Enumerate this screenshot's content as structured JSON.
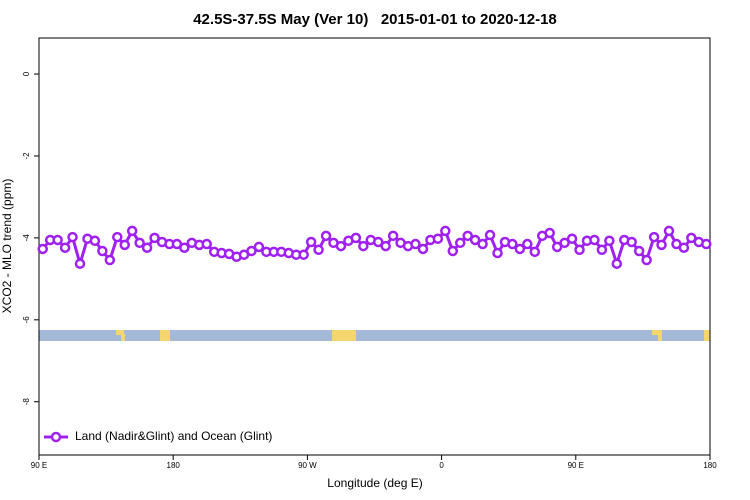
{
  "chart_data": {
    "type": "line",
    "title": "42.5S-37.5S May (Ver 10)   2015-01-01 to 2020-12-18",
    "x_label": "Longitude (deg E)",
    "y_label": "XCO2 - MLO trend (ppm)",
    "x": [
      92.5,
      97.5,
      102.5,
      107.5,
      112.5,
      117.5,
      122.5,
      127.5,
      132.5,
      137.5,
      142.5,
      147.5,
      152.5,
      157.5,
      162.5,
      167.5,
      172.5,
      177.5,
      182.5,
      187.5,
      192.5,
      197.5,
      202.5,
      207.5,
      212.5,
      217.5,
      222.5,
      227.5,
      232.5,
      237.5,
      242.5,
      247.5,
      252.5,
      257.5,
      262.5,
      267.5,
      272.5,
      277.5,
      282.5,
      287.5,
      292.5,
      297.5,
      302.5,
      307.5,
      312.5,
      317.5,
      322.5,
      327.5,
      332.5,
      337.5,
      342.5,
      347.5,
      352.5,
      357.5,
      362.5,
      367.5,
      372.5,
      377.5,
      382.5,
      387.5,
      392.5,
      397.5,
      402.5,
      407.5,
      412.5,
      417.5,
      422.5,
      427.5,
      432.5,
      437.5,
      442.5,
      447.5,
      452.5,
      457.5,
      462.5,
      467.5,
      472.5,
      477.5,
      482.5,
      487.5,
      492.5,
      497.5,
      502.5,
      507.5,
      512.5,
      517.5,
      522.5,
      527.5,
      532.5,
      537.5
    ],
    "series": [
      {
        "name": "Land (Nadir&Glint) and Ocean (Glint)",
        "color": "#a020f0",
        "values": [
          -4.27,
          -4.05,
          -4.05,
          -4.24,
          -3.98,
          -4.63,
          -4.02,
          -4.07,
          -4.32,
          -4.54,
          -3.98,
          -4.17,
          -3.83,
          -4.12,
          -4.24,
          -4.0,
          -4.1,
          -4.15,
          -4.15,
          -4.24,
          -4.12,
          -4.17,
          -4.15,
          -4.34,
          -4.37,
          -4.39,
          -4.46,
          -4.41,
          -4.32,
          -4.22,
          -4.34,
          -4.34,
          -4.34,
          -4.37,
          -4.41,
          -4.41,
          -4.1,
          -4.29,
          -3.95,
          -4.12,
          -4.2,
          -4.07,
          -4.0,
          -4.2,
          -4.05,
          -4.1,
          -4.2,
          -3.95,
          -4.12,
          -4.2,
          -4.15,
          -4.27,
          -4.05,
          -4.02,
          -3.83,
          -4.32,
          -4.12,
          -3.95,
          -4.05,
          -4.15,
          -3.93,
          -4.37,
          -4.1,
          -4.15,
          -4.27,
          -4.15,
          -4.34,
          -3.95,
          -3.88,
          -4.22,
          -4.12,
          -4.02,
          -4.29,
          -4.07,
          -4.05,
          -4.29,
          -4.07,
          -4.63,
          -4.05,
          -4.1,
          -4.32,
          -4.54,
          -3.98,
          -4.17,
          -3.83,
          -4.15,
          -4.24,
          -4.0,
          -4.1,
          -4.15
        ]
      }
    ],
    "xlim": [
      90,
      540
    ],
    "xticks": [
      {
        "value": 90,
        "label": "90 E"
      },
      {
        "value": 180,
        "label": "180"
      },
      {
        "value": 270,
        "label": "90 W"
      },
      {
        "value": 360,
        "label": "0"
      },
      {
        "value": 450,
        "label": "90 E"
      },
      {
        "value": 540,
        "label": "180"
      }
    ],
    "ylim": [
      -9.3,
      0.88
    ],
    "yticks": [
      0,
      -2,
      -4,
      -6,
      -8
    ],
    "legend": "bottom-left"
  }
}
